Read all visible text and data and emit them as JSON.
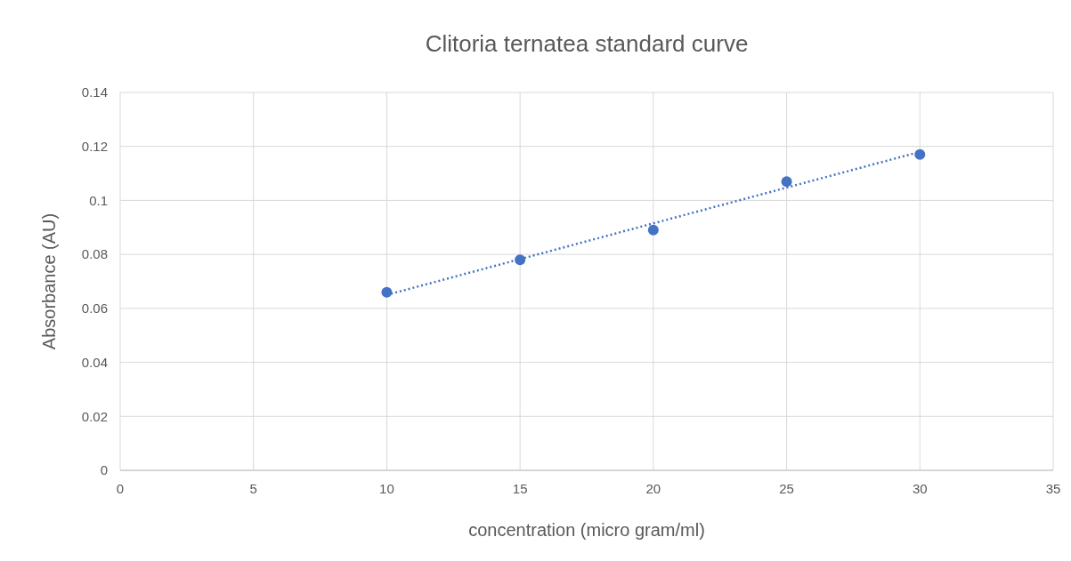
{
  "chart_data": {
    "type": "scatter",
    "title": "Clitoria ternatea standard curve",
    "xlabel": "concentration (micro gram/ml)",
    "ylabel": "Absorbance (AU)",
    "x": [
      10,
      15,
      20,
      25,
      30
    ],
    "series": [
      {
        "color": "#4472c4",
        "values": [
          0.066,
          0.078,
          0.089,
          0.107,
          0.117
        ],
        "marker": "circle"
      },
      {
        "type": "line",
        "color": "#4472c4",
        "x": [
          10,
          30
        ],
        "values": [
          0.065,
          0.118
        ],
        "line_style": "dotted",
        "marker": "none"
      }
    ],
    "xlim": [
      0,
      35
    ],
    "xticks": [
      0,
      5,
      10,
      15,
      20,
      25,
      30,
      35
    ],
    "ylim": [
      0,
      0.14
    ],
    "yticks": [
      {
        "value": 0,
        "label": "0"
      },
      {
        "value": 0.02,
        "label": "0.02"
      },
      {
        "value": 0.04,
        "label": "0.04"
      },
      {
        "value": 0.06,
        "label": "0.06"
      },
      {
        "value": 0.08,
        "label": "0.08"
      },
      {
        "value": 0.1,
        "label": "0.1"
      },
      {
        "value": 0.12,
        "label": "0.12"
      },
      {
        "value": 0.14,
        "label": "0.14"
      }
    ],
    "grid": true
  }
}
